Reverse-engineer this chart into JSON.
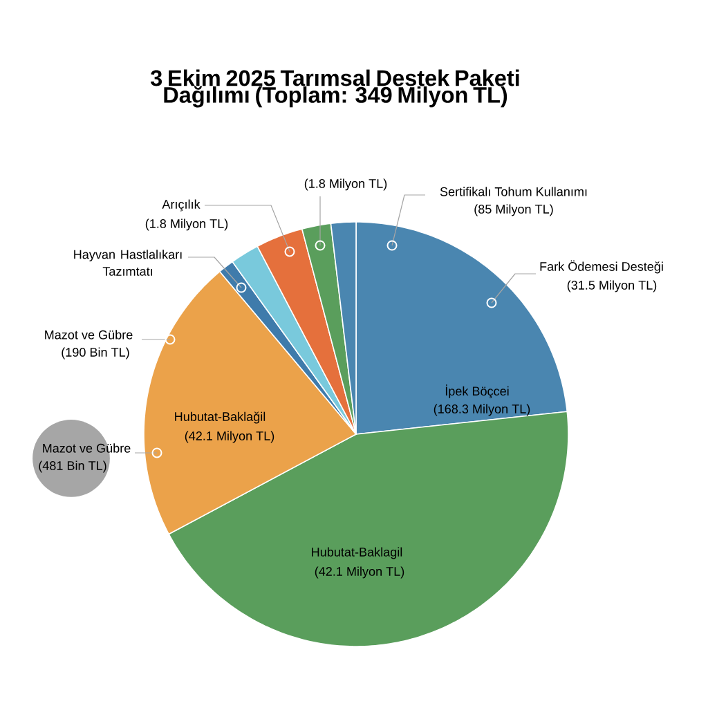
{
  "chart_data": {
    "type": "pie",
    "title": "3 Ekim 2025 Tarımsal Destek Paketi Dağılımı (Toplam: 349 Milyon TL)",
    "categories": [
      "Sertifikalı Tohum Kullanımı",
      "Hubutat-Baklagil",
      "Hubutat-Baklağil",
      "Hayvan Hastlalıkarı Tazımtatı",
      null,
      "Arıçılık",
      null,
      null
    ],
    "values": [
      23.3,
      43.9,
      21.7,
      1.2,
      2.2,
      3.6,
      2.2,
      1.9
    ],
    "colors": [
      "#4a86b0",
      "#5a9e5c",
      "#eba24a",
      "#3f7bab",
      "#79c9dc",
      "#e5703c",
      "#5a9e5c",
      "#4a86b0"
    ],
    "annotations": [
      "Fark Ödemesi Desteği",
      "(31.5 Milyon TL)",
      "İpek Böçcei",
      "(168.3 Milyon TL)",
      "Mazot ve Gübre",
      "(190 Bin TL)",
      "Mazot ve Gübre",
      "(481 Bin TL)",
      "(85 Milyon TL)",
      "(42.1 Milyon TL)",
      "(42.1 Milyon TL)",
      "(1.8 Milyon TL)",
      "(1.8 Milyon TL)"
    ]
  }
}
